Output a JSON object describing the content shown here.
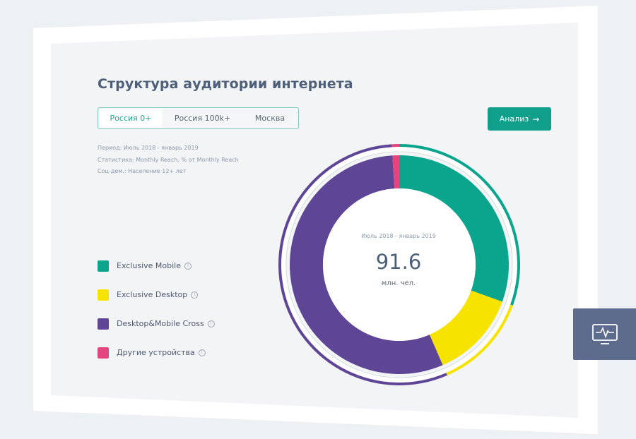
{
  "header": {
    "title": "Структура аудитории интернета"
  },
  "tabs": [
    {
      "label": "Россия 0+",
      "active": true
    },
    {
      "label": "Россия 100k+",
      "active": false
    },
    {
      "label": "Москва",
      "active": false
    }
  ],
  "action": {
    "label": "Анализ",
    "arrow": "→"
  },
  "meta": {
    "period": "Период: Июль 2018 - январь 2019",
    "statistic": "Статистика: Monthly Reach, % от Monthly Reach",
    "demographic": "Соц-дем.: Население 12+ лет"
  },
  "center": {
    "period": "Июль 2018 - январь 2019",
    "value": "91.6",
    "unit": "млн. чел."
  },
  "icons": {
    "info": "info-icon",
    "monitor": "monitor-pulse-icon"
  },
  "colors": {
    "accent": "#109f8b",
    "exclusive_mobile": "#0ba58e",
    "exclusive_desktop": "#f7e300",
    "cross": "#5e4595",
    "other": "#e5457e",
    "title": "#4e5f7a"
  },
  "chart_data": {
    "type": "pie",
    "title": "",
    "categories": [
      "Exclusive Mobile",
      "Exclusive Desktop",
      "Desktop&Mobile Cross",
      "Другие устройства"
    ],
    "values": [
      30.5,
      13,
      55.5,
      1
    ],
    "colors": [
      "#0ba58e",
      "#f7e300",
      "#5e4595",
      "#e5457e"
    ],
    "legend": "left"
  }
}
